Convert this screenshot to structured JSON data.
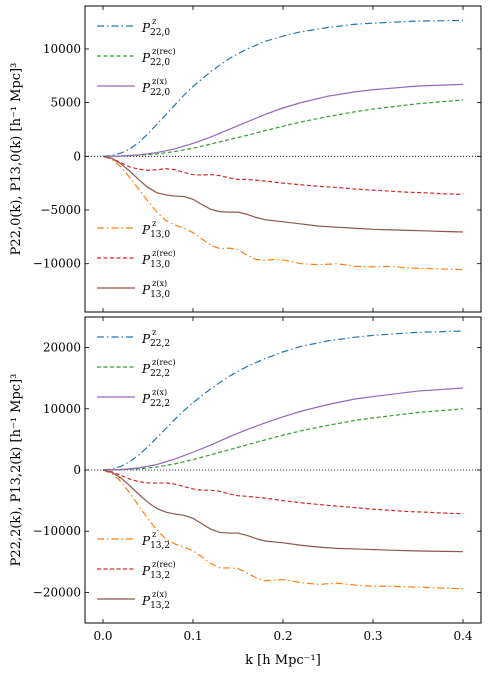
{
  "figure": {
    "xlabel": "k [h Mpc⁻¹]"
  },
  "colors": {
    "blue": "#1f77b4",
    "green": "#2ca02c",
    "purple": "#9467bd",
    "orange": "#ff7f0e",
    "red": "#d62728",
    "brown": "#8c564b"
  },
  "chart_data": [
    {
      "type": "line",
      "ylabel": "P22,0(k), P13,0(k) [h⁻¹ Mpc]³",
      "xlim": [
        -0.02,
        0.42
      ],
      "ylim": [
        -14500,
        14000
      ],
      "x_ticks": [
        0.0,
        0.1,
        0.2,
        0.3,
        0.4
      ],
      "x_tick_labels": [
        "",
        "",
        "",
        "",
        ""
      ],
      "y_ticks": [
        -10000,
        -5000,
        0,
        5000,
        10000
      ],
      "y_tick_labels": [
        "−10000",
        "−5000",
        "0",
        "5000",
        "10000"
      ],
      "zero_line": true,
      "legend_upper": [
        0,
        1,
        2
      ],
      "legend_lower": [
        3,
        4,
        5
      ],
      "series": [
        {
          "sym": "P",
          "sup": "z",
          "sub": "22,0",
          "color": "#1f77b4",
          "dash": "7,3,1.5,3",
          "x": [
            0,
            0.01,
            0.02,
            0.03,
            0.04,
            0.05,
            0.06,
            0.07,
            0.08,
            0.09,
            0.1,
            0.12,
            0.14,
            0.16,
            0.18,
            0.2,
            0.22,
            0.25,
            0.28,
            0.3,
            0.35,
            0.4
          ],
          "y": [
            0,
            80,
            300,
            700,
            1300,
            2100,
            3000,
            3900,
            4800,
            5700,
            6500,
            7900,
            9100,
            10000,
            10700,
            11200,
            11600,
            12000,
            12300,
            12400,
            12600,
            12650
          ]
        },
        {
          "sym": "P",
          "sup": "z(rec)",
          "sub": "22,0",
          "color": "#2ca02c",
          "dash": "4,2.5",
          "x": [
            0,
            0.02,
            0.04,
            0.06,
            0.08,
            0.1,
            0.12,
            0.14,
            0.16,
            0.18,
            0.2,
            0.22,
            0.25,
            0.28,
            0.3,
            0.35,
            0.4
          ],
          "y": [
            0,
            20,
            100,
            220,
            450,
            750,
            1150,
            1550,
            1950,
            2400,
            2800,
            3200,
            3700,
            4150,
            4400,
            4900,
            5250
          ]
        },
        {
          "sym": "P",
          "sup": "z(x)",
          "sub": "22,0",
          "color": "#9467bd",
          "dash": "",
          "x": [
            0,
            0.02,
            0.04,
            0.06,
            0.08,
            0.1,
            0.12,
            0.14,
            0.16,
            0.18,
            0.2,
            0.22,
            0.25,
            0.28,
            0.3,
            0.35,
            0.4
          ],
          "y": [
            0,
            30,
            130,
            350,
            700,
            1200,
            1800,
            2500,
            3200,
            3900,
            4500,
            5000,
            5600,
            6000,
            6200,
            6550,
            6700
          ]
        },
        {
          "sym": "P",
          "sup": "z",
          "sub": "13,0",
          "color": "#ff7f0e",
          "dash": "7,3,1.5,3",
          "x": [
            0,
            0.01,
            0.02,
            0.03,
            0.04,
            0.05,
            0.06,
            0.07,
            0.08,
            0.09,
            0.1,
            0.11,
            0.12,
            0.13,
            0.14,
            0.15,
            0.16,
            0.17,
            0.18,
            0.19,
            0.2,
            0.22,
            0.24,
            0.26,
            0.28,
            0.3,
            0.32,
            0.34,
            0.36,
            0.38,
            0.4
          ],
          "y": [
            0,
            -300,
            -1000,
            -2000,
            -3100,
            -4200,
            -5200,
            -6000,
            -6400,
            -6700,
            -7100,
            -7700,
            -8300,
            -8600,
            -8550,
            -8700,
            -9200,
            -9600,
            -9700,
            -9600,
            -9650,
            -10000,
            -10100,
            -10000,
            -10250,
            -10300,
            -10250,
            -10400,
            -10450,
            -10500,
            -10550
          ]
        },
        {
          "sym": "P",
          "sup": "z(rec)",
          "sub": "13,0",
          "color": "#d62728",
          "dash": "4,2.5",
          "x": [
            0,
            0.01,
            0.02,
            0.03,
            0.04,
            0.05,
            0.06,
            0.07,
            0.08,
            0.09,
            0.1,
            0.11,
            0.12,
            0.13,
            0.14,
            0.15,
            0.16,
            0.18,
            0.2,
            0.22,
            0.24,
            0.26,
            0.28,
            0.3,
            0.32,
            0.34,
            0.36,
            0.38,
            0.4
          ],
          "y": [
            0,
            -200,
            -600,
            -1000,
            -1200,
            -1300,
            -1250,
            -1150,
            -1250,
            -1500,
            -1700,
            -1750,
            -1700,
            -1800,
            -2000,
            -2150,
            -2150,
            -2300,
            -2500,
            -2650,
            -2800,
            -2900,
            -3050,
            -3150,
            -3250,
            -3350,
            -3400,
            -3500,
            -3550
          ]
        },
        {
          "sym": "P",
          "sup": "z(x)",
          "sub": "13,0",
          "color": "#8c564b",
          "dash": "",
          "x": [
            0,
            0.01,
            0.02,
            0.03,
            0.04,
            0.05,
            0.06,
            0.07,
            0.08,
            0.09,
            0.1,
            0.11,
            0.12,
            0.13,
            0.14,
            0.15,
            0.16,
            0.17,
            0.18,
            0.2,
            0.22,
            0.24,
            0.26,
            0.28,
            0.3,
            0.32,
            0.34,
            0.36,
            0.38,
            0.4
          ],
          "y": [
            0,
            -200,
            -700,
            -1400,
            -2200,
            -2900,
            -3400,
            -3600,
            -3700,
            -3750,
            -4000,
            -4500,
            -4950,
            -5150,
            -5200,
            -5200,
            -5400,
            -5700,
            -5900,
            -6100,
            -6300,
            -6500,
            -6600,
            -6700,
            -6800,
            -6850,
            -6900,
            -6950,
            -7000,
            -7050
          ]
        }
      ]
    },
    {
      "type": "line",
      "ylabel": "P22,2(k), P13,2(k) [h⁻¹ Mpc]³",
      "xlim": [
        -0.02,
        0.42
      ],
      "ylim": [
        -25000,
        25000
      ],
      "x_ticks": [
        0.0,
        0.1,
        0.2,
        0.3,
        0.4
      ],
      "x_tick_labels": [
        "0.0",
        "0.1",
        "0.2",
        "0.3",
        "0.4"
      ],
      "y_ticks": [
        -20000,
        -10000,
        0,
        10000,
        20000
      ],
      "y_tick_labels": [
        "−20000",
        "−10000",
        "0",
        "10000",
        "20000"
      ],
      "zero_line": true,
      "legend_upper": [
        0,
        1,
        2
      ],
      "legend_lower": [
        3,
        4,
        5
      ],
      "series": [
        {
          "sym": "P",
          "sup": "z",
          "sub": "22,2",
          "color": "#1f77b4",
          "dash": "7,3,1.5,3",
          "x": [
            0,
            0.01,
            0.02,
            0.03,
            0.04,
            0.05,
            0.06,
            0.07,
            0.08,
            0.09,
            0.1,
            0.12,
            0.14,
            0.16,
            0.18,
            0.2,
            0.22,
            0.25,
            0.28,
            0.3,
            0.35,
            0.4
          ],
          "y": [
            0,
            150,
            600,
            1400,
            2500,
            3800,
            5300,
            6800,
            8300,
            9700,
            11000,
            13300,
            15300,
            16900,
            18200,
            19300,
            20200,
            21100,
            21700,
            22000,
            22500,
            22700
          ]
        },
        {
          "sym": "P",
          "sup": "z(rec)",
          "sub": "22,2",
          "color": "#2ca02c",
          "dash": "4,2.5",
          "x": [
            0,
            0.02,
            0.04,
            0.06,
            0.08,
            0.1,
            0.12,
            0.14,
            0.16,
            0.18,
            0.2,
            0.22,
            0.25,
            0.28,
            0.3,
            0.35,
            0.4
          ],
          "y": [
            0,
            50,
            200,
            500,
            1000,
            1700,
            2500,
            3300,
            4100,
            4900,
            5700,
            6400,
            7300,
            8100,
            8500,
            9400,
            10000
          ]
        },
        {
          "sym": "P",
          "sup": "z(x)",
          "sub": "22,2",
          "color": "#9467bd",
          "dash": "",
          "x": [
            0,
            0.02,
            0.04,
            0.06,
            0.08,
            0.1,
            0.12,
            0.14,
            0.16,
            0.18,
            0.2,
            0.22,
            0.25,
            0.28,
            0.3,
            0.35,
            0.4
          ],
          "y": [
            0,
            80,
            350,
            900,
            1800,
            2900,
            4100,
            5400,
            6600,
            7700,
            8700,
            9600,
            10700,
            11600,
            12000,
            12900,
            13400
          ]
        },
        {
          "sym": "P",
          "sup": "z",
          "sub": "13,2",
          "color": "#ff7f0e",
          "dash": "7,3,1.5,3",
          "x": [
            0,
            0.01,
            0.02,
            0.03,
            0.04,
            0.05,
            0.06,
            0.07,
            0.08,
            0.09,
            0.1,
            0.11,
            0.12,
            0.13,
            0.14,
            0.15,
            0.16,
            0.17,
            0.18,
            0.19,
            0.2,
            0.22,
            0.24,
            0.26,
            0.28,
            0.3,
            0.32,
            0.34,
            0.36,
            0.38,
            0.4
          ],
          "y": [
            0,
            -600,
            -1900,
            -3800,
            -5900,
            -8000,
            -9800,
            -11300,
            -12100,
            -12600,
            -13200,
            -14200,
            -15300,
            -16000,
            -16000,
            -16100,
            -16800,
            -17600,
            -18100,
            -18000,
            -17900,
            -18400,
            -18700,
            -18500,
            -18800,
            -19000,
            -19000,
            -19100,
            -19200,
            -19300,
            -19400
          ]
        },
        {
          "sym": "P",
          "sup": "z(rec)",
          "sub": "13,2",
          "color": "#d62728",
          "dash": "4,2.5",
          "x": [
            0,
            0.01,
            0.02,
            0.03,
            0.04,
            0.05,
            0.06,
            0.07,
            0.08,
            0.09,
            0.1,
            0.11,
            0.12,
            0.13,
            0.14,
            0.15,
            0.16,
            0.18,
            0.2,
            0.22,
            0.24,
            0.26,
            0.28,
            0.3,
            0.32,
            0.34,
            0.36,
            0.38,
            0.4
          ],
          "y": [
            0,
            -300,
            -900,
            -1500,
            -1900,
            -2100,
            -2150,
            -2100,
            -2300,
            -2700,
            -3100,
            -3300,
            -3300,
            -3500,
            -3900,
            -4200,
            -4300,
            -4600,
            -5000,
            -5350,
            -5650,
            -5900,
            -6150,
            -6400,
            -6600,
            -6800,
            -6900,
            -7050,
            -7150
          ]
        },
        {
          "sym": "P",
          "sup": "z(x)",
          "sub": "13,2",
          "color": "#8c564b",
          "dash": "",
          "x": [
            0,
            0.01,
            0.02,
            0.03,
            0.04,
            0.05,
            0.06,
            0.07,
            0.08,
            0.09,
            0.1,
            0.11,
            0.12,
            0.13,
            0.14,
            0.15,
            0.16,
            0.17,
            0.18,
            0.2,
            0.22,
            0.24,
            0.26,
            0.28,
            0.3,
            0.32,
            0.34,
            0.36,
            0.38,
            0.4
          ],
          "y": [
            0,
            -400,
            -1300,
            -2600,
            -4000,
            -5300,
            -6300,
            -6900,
            -7200,
            -7400,
            -7900,
            -8800,
            -9700,
            -10200,
            -10300,
            -10300,
            -10700,
            -11200,
            -11600,
            -11900,
            -12300,
            -12600,
            -12800,
            -12900,
            -13000,
            -13100,
            -13200,
            -13250,
            -13300,
            -13350
          ]
        }
      ]
    }
  ]
}
